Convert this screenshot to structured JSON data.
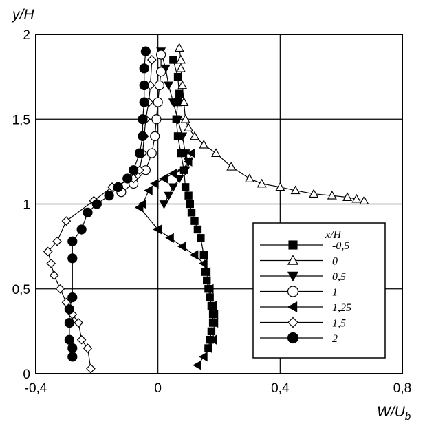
{
  "chart_data": {
    "type": "line",
    "xlabel": "W/U",
    "xlabel_sub": "b",
    "ylabel": "y/H",
    "xlim": [
      -0.4,
      0.8
    ],
    "ylim": [
      0,
      2
    ],
    "x_ticks": [
      -0.4,
      0,
      0.4,
      0.8
    ],
    "x_tick_labels": [
      "-0,4",
      "0",
      "0,4",
      "0,8"
    ],
    "y_ticks": [
      0,
      0.5,
      1,
      1.5,
      2
    ],
    "y_tick_labels": [
      "0",
      "0,5",
      "1",
      "1,5",
      "2"
    ],
    "grid": true,
    "legend_title": "x/H",
    "legend_position": "lower-right",
    "series": [
      {
        "name": "-0,5",
        "marker": "square-filled",
        "x": [
          0.05,
          0.065,
          0.07,
          0.065,
          0.06,
          0.065,
          0.075,
          0.085,
          0.09,
          0.1,
          0.105,
          0.11,
          0.12,
          0.13,
          0.14,
          0.15,
          0.155,
          0.16,
          0.165,
          0.17,
          0.175,
          0.18,
          0.18,
          0.175,
          0.17,
          0.165
        ],
        "y": [
          1.85,
          1.75,
          1.65,
          1.6,
          1.5,
          1.4,
          1.3,
          1.2,
          1.1,
          1.05,
          1.0,
          0.95,
          0.9,
          0.85,
          0.8,
          0.7,
          0.6,
          0.55,
          0.5,
          0.45,
          0.4,
          0.35,
          0.3,
          0.25,
          0.2,
          0.15
        ]
      },
      {
        "name": "0",
        "marker": "triangle-up-open",
        "x": [
          0.07,
          0.075,
          0.075,
          0.08,
          0.085,
          0.09,
          0.1,
          0.12,
          0.15,
          0.19,
          0.24,
          0.3,
          0.34,
          0.4,
          0.45,
          0.51,
          0.57,
          0.62,
          0.65,
          0.675
        ],
        "y": [
          1.92,
          1.85,
          1.8,
          1.7,
          1.6,
          1.5,
          1.45,
          1.4,
          1.35,
          1.3,
          1.22,
          1.15,
          1.12,
          1.1,
          1.08,
          1.06,
          1.05,
          1.04,
          1.03,
          1.02
        ]
      },
      {
        "name": "0,5",
        "marker": "triangle-down-filled",
        "x": [
          0.01,
          0.025,
          0.035,
          0.05,
          0.065,
          0.08,
          0.09,
          0.1,
          0.09,
          0.07,
          0.05,
          0.035,
          0.02
        ],
        "y": [
          1.9,
          1.8,
          1.7,
          1.6,
          1.5,
          1.4,
          1.3,
          1.25,
          1.2,
          1.15,
          1.1,
          1.05,
          1.0
        ]
      },
      {
        "name": "1",
        "marker": "circle-open",
        "x": [
          0.01,
          0.01,
          0.005,
          0.0,
          -0.005,
          -0.01,
          -0.02,
          -0.04,
          -0.08,
          -0.12
        ],
        "y": [
          1.88,
          1.78,
          1.7,
          1.6,
          1.5,
          1.4,
          1.3,
          1.2,
          1.12,
          1.07
        ]
      },
      {
        "name": "1,25",
        "marker": "triangle-left-filled",
        "x": [
          0.11,
          0.1,
          0.08,
          0.05,
          0.02,
          -0.01,
          -0.03,
          -0.05,
          -0.06,
          0.0,
          0.04,
          0.08,
          0.12,
          0.15,
          0.16,
          0.17,
          0.18,
          0.185,
          0.185,
          0.18,
          0.165,
          0.15,
          0.13
        ],
        "y": [
          1.3,
          1.25,
          1.2,
          1.18,
          1.15,
          1.12,
          1.08,
          1.0,
          0.98,
          0.85,
          0.8,
          0.75,
          0.7,
          0.65,
          0.6,
          0.5,
          0.4,
          0.35,
          0.3,
          0.2,
          0.15,
          0.1,
          0.05
        ]
      },
      {
        "name": "1,5",
        "marker": "diamond-open",
        "x": [
          -0.02,
          -0.025,
          -0.03,
          -0.04,
          -0.045,
          -0.05,
          -0.06,
          -0.08,
          -0.15,
          -0.21,
          -0.3,
          -0.33,
          -0.36,
          -0.35,
          -0.34,
          -0.32,
          -0.3,
          -0.28,
          -0.26,
          -0.25,
          -0.23,
          -0.22
        ],
        "y": [
          1.85,
          1.7,
          1.6,
          1.5,
          1.4,
          1.3,
          1.2,
          1.15,
          1.1,
          1.02,
          0.9,
          0.78,
          0.72,
          0.65,
          0.58,
          0.5,
          0.42,
          0.35,
          0.3,
          0.2,
          0.15,
          0.03
        ]
      },
      {
        "name": "2",
        "marker": "circle-filled",
        "x": [
          -0.04,
          -0.045,
          -0.045,
          -0.045,
          -0.05,
          -0.05,
          -0.06,
          -0.08,
          -0.1,
          -0.13,
          -0.16,
          -0.2,
          -0.23,
          -0.25,
          -0.28,
          -0.28,
          -0.28,
          -0.29,
          -0.29,
          -0.29,
          -0.28,
          -0.28
        ],
        "y": [
          1.9,
          1.8,
          1.7,
          1.6,
          1.5,
          1.4,
          1.3,
          1.2,
          1.15,
          1.1,
          1.05,
          1.0,
          0.95,
          0.85,
          0.78,
          0.68,
          0.45,
          0.38,
          0.3,
          0.2,
          0.15,
          0.1
        ]
      }
    ]
  }
}
